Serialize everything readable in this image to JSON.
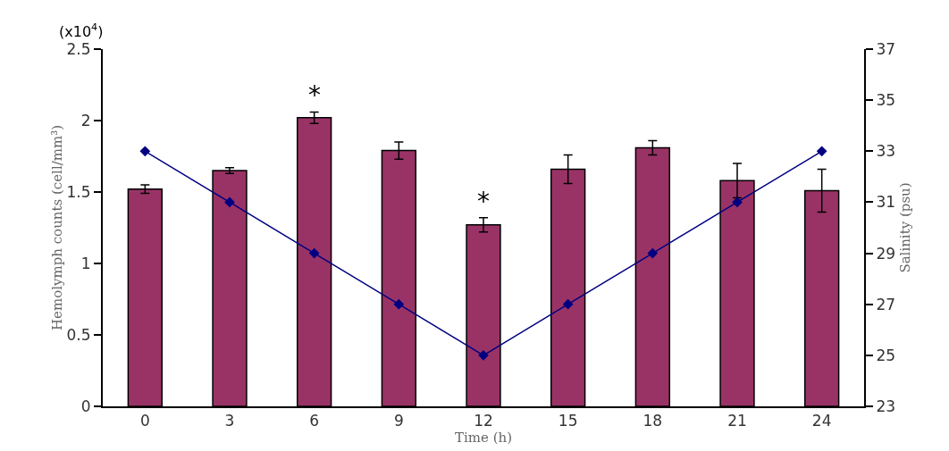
{
  "chart_data": {
    "type": "bar",
    "xlabel": "Time (h)",
    "ylabel": "Hemolymph counts (cell/mm³)",
    "y2label": "Salinity (psu)",
    "categories": [
      "0",
      "3",
      "6",
      "9",
      "12",
      "15",
      "18",
      "21",
      "24"
    ],
    "series": [
      {
        "color": "#993366",
        "values": [
          1.52,
          1.65,
          2.02,
          1.79,
          1.27,
          1.66,
          1.81,
          1.58,
          1.51
        ],
        "errors": [
          0.03,
          0.02,
          0.04,
          0.06,
          0.05,
          0.1,
          0.05,
          0.12,
          0.15
        ]
      },
      {
        "type": "line",
        "axis": "y2",
        "color": "#000080",
        "marker": "diamond",
        "values": [
          33,
          31,
          29,
          27,
          25,
          27,
          29,
          31,
          33
        ]
      }
    ],
    "ylim": [
      0,
      2.5
    ],
    "yticks": [
      0,
      0.5,
      1,
      1.5,
      2,
      2.5
    ],
    "y2lim": [
      23,
      37
    ],
    "y2ticks": [
      23,
      25,
      27,
      29,
      31,
      33,
      35,
      37
    ],
    "annotations": [
      "(x10$^{4}$)",
      {
        "text": "*",
        "x": "6",
        "y": 2.06
      },
      {
        "text": "*",
        "x": "12",
        "y": 1.32
      }
    ],
    "grid": false,
    "legend": false
  }
}
